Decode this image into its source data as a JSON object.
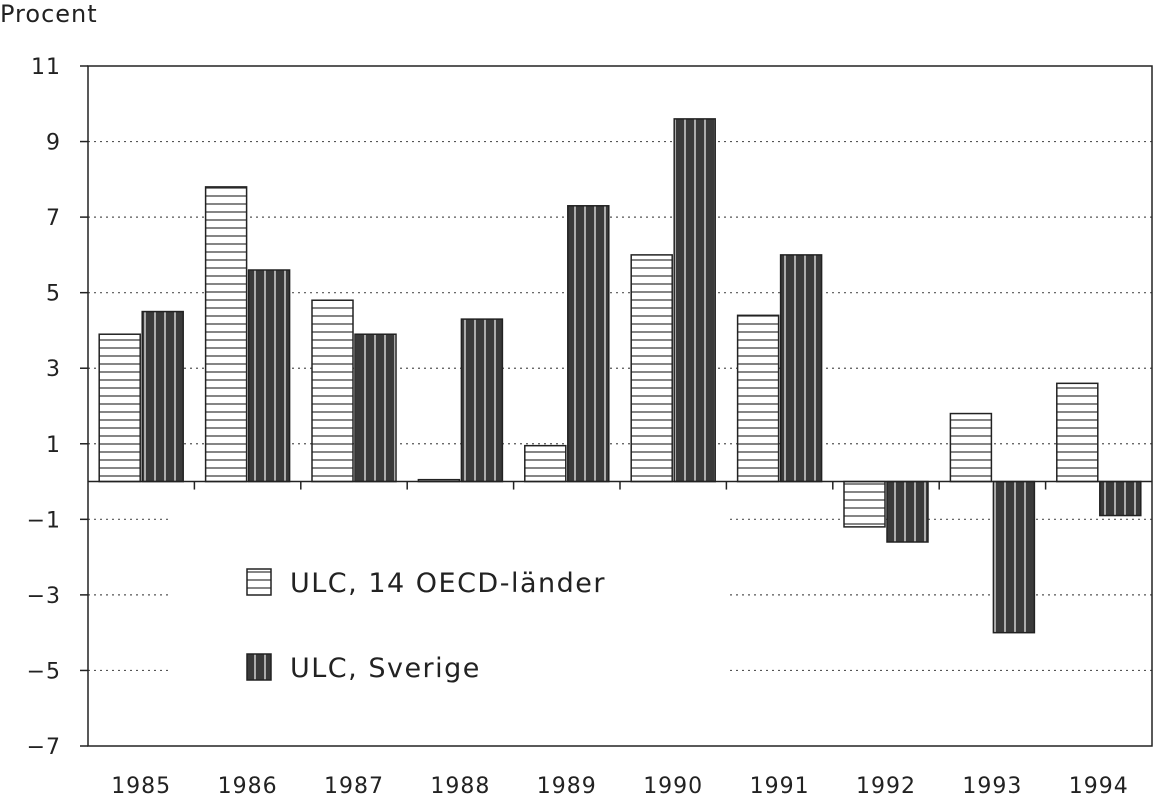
{
  "chart_data": {
    "type": "bar",
    "ylabel": "Procent",
    "categories": [
      "1985",
      "1986",
      "1987",
      "1988",
      "1989",
      "1990",
      "1991",
      "1992",
      "1993",
      "1994"
    ],
    "series": [
      {
        "name": "ULC, 14 OECD-länder",
        "values": [
          3.9,
          7.8,
          4.8,
          0.05,
          0.95,
          6.0,
          4.4,
          -1.2,
          1.8,
          2.6
        ],
        "pattern": "horizontal-stripes",
        "color": "#ffffff"
      },
      {
        "name": "ULC, Sverige",
        "values": [
          4.5,
          5.6,
          3.9,
          4.3,
          7.3,
          9.6,
          6.0,
          -1.6,
          -4.0,
          -0.9
        ],
        "pattern": "vertical-stripes",
        "color": "#3a3a3a"
      }
    ],
    "ylim": [
      -7,
      11
    ],
    "yticks": [
      11,
      9,
      7,
      5,
      3,
      1,
      -1,
      -3,
      -5,
      -7
    ],
    "ytick_labels": [
      "11",
      "9",
      "7",
      "5",
      "3",
      "1",
      "−1",
      "−3",
      "−5",
      "−7"
    ],
    "grid": true,
    "legend_position": "lower-left"
  }
}
